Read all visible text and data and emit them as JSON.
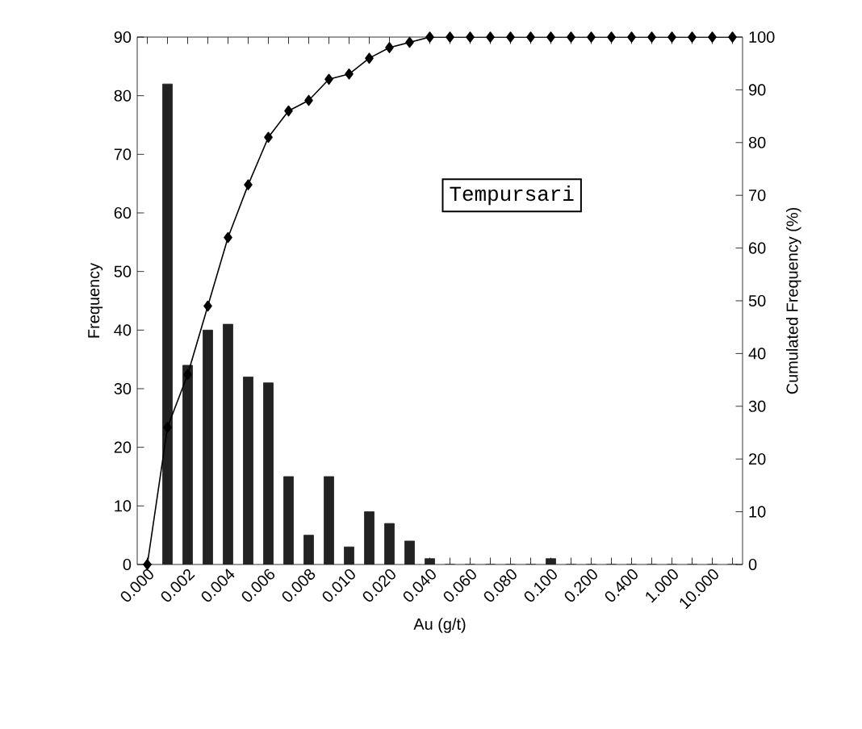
{
  "chart_data": {
    "type": "bar",
    "categories": [
      "0.000",
      null,
      "0.002",
      null,
      "0.004",
      null,
      "0.006",
      null,
      "0.008",
      null,
      "0.010",
      null,
      "0.020",
      null,
      "0.040",
      null,
      "0.060",
      null,
      "0.080",
      null,
      "0.100",
      null,
      "0.200",
      null,
      "0.400",
      null,
      "1.000",
      null,
      "10.000",
      null
    ],
    "series": [
      {
        "color": "#222222",
        "values": [
          0,
          82,
          34,
          40,
          41,
          32,
          31,
          15,
          5,
          15,
          3,
          9,
          7,
          4,
          1,
          0,
          0,
          0,
          0,
          0,
          1,
          0,
          0,
          0,
          0,
          0,
          0,
          0,
          0,
          0
        ]
      },
      {
        "type": "line",
        "axis": "y2",
        "color": "#000000",
        "marker": "diamond",
        "values": [
          0,
          26,
          36,
          49,
          62,
          72,
          81,
          86,
          88,
          92,
          93,
          96,
          98,
          99,
          100,
          100,
          100,
          100,
          100,
          100,
          100,
          100,
          100,
          100,
          100,
          100,
          100,
          100,
          100,
          100
        ]
      }
    ],
    "xlabel": "Au (g/t)",
    "ylabel": "Frequency",
    "y2label": "Cumulated Frequency (%)",
    "ylim": [
      0,
      90
    ],
    "yticks": [
      0,
      10,
      20,
      30,
      40,
      50,
      60,
      70,
      80,
      90
    ],
    "y2lim": [
      0,
      100
    ],
    "y2ticks": [
      0,
      10,
      20,
      30,
      40,
      50,
      60,
      70,
      80,
      90,
      100
    ],
    "annotations": [
      "Tempursari"
    ],
    "grid": false
  }
}
